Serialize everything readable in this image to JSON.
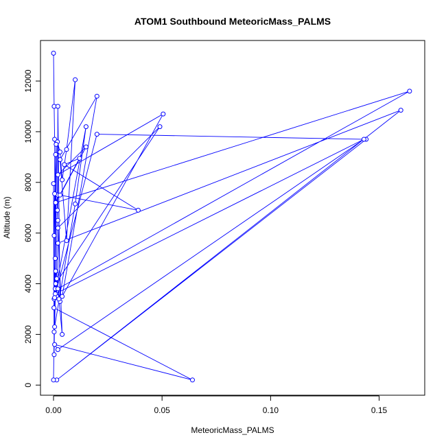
{
  "chart_data": {
    "type": "scatter",
    "title": "ATOM1 Southbound MeteoricMass_PALMS",
    "xlabel": "MeteoricMass_PALMS",
    "ylabel": "Altitude (m)",
    "xlim": [
      -0.006,
      0.171
    ],
    "ylim": [
      -400,
      13600
    ],
    "x_ticks": [
      0.0,
      0.05,
      0.1,
      0.15
    ],
    "x_tick_labels": [
      "0.00",
      "0.05",
      "0.10",
      "0.15"
    ],
    "y_ticks": [
      0,
      2000,
      4000,
      6000,
      8000,
      10000,
      12000
    ],
    "y_tick_labels": [
      "0",
      "2000",
      "4000",
      "6000",
      "8000",
      "10000",
      "12000"
    ],
    "grid": false,
    "legend": "none",
    "series": [
      {
        "color": "#0000ff",
        "marker": "open-circle",
        "connected": true,
        "x": [
          0.0,
          0.0003,
          0.0005,
          0.0008,
          0.001,
          0.0015,
          0.0012,
          0.002,
          0.0018,
          0.003,
          0.004,
          0.006,
          0.01,
          0.006,
          0.003,
          0.02,
          0.004,
          0.0505,
          0.002,
          0.015,
          0.003,
          0.039,
          0.005,
          0.012,
          0.001,
          0.164,
          0.002,
          0.002,
          0.049,
          0.001,
          0.0005,
          0.01,
          0.015,
          0.0003,
          0.02,
          0.144,
          0.0015,
          0.16,
          0.002,
          0.002,
          0.003,
          0.001,
          0.0008,
          0.143,
          0.002,
          0.0005,
          0.064,
          0.0002,
          0.0003,
          0.0005,
          0.0012,
          0.0018,
          0.002,
          0.004,
          0.0025,
          0.0015,
          0.0005,
          0.0,
          0.0003,
          0.0008,
          0.0003,
          0.0
        ],
        "y": [
          13100,
          11000,
          9700,
          3800,
          9100,
          3500,
          7200,
          7500,
          9600,
          9200,
          8100,
          9300,
          12050,
          5700,
          8900,
          11400,
          3500,
          10700,
          8300,
          9400,
          7500,
          6900,
          8700,
          8950,
          7200,
          11600,
          3800,
          6200,
          10200,
          4000,
          2300,
          7150,
          10200,
          3400,
          9900,
          9700,
          200,
          10850,
          5600,
          11000,
          3300,
          4500,
          3600,
          9700,
          1400,
          1600,
          200,
          3050,
          5900,
          7550,
          9500,
          6900,
          6500,
          2000,
          3400,
          4200,
          3450,
          7950,
          1200,
          5000,
          2100,
          200
        ]
      }
    ]
  }
}
